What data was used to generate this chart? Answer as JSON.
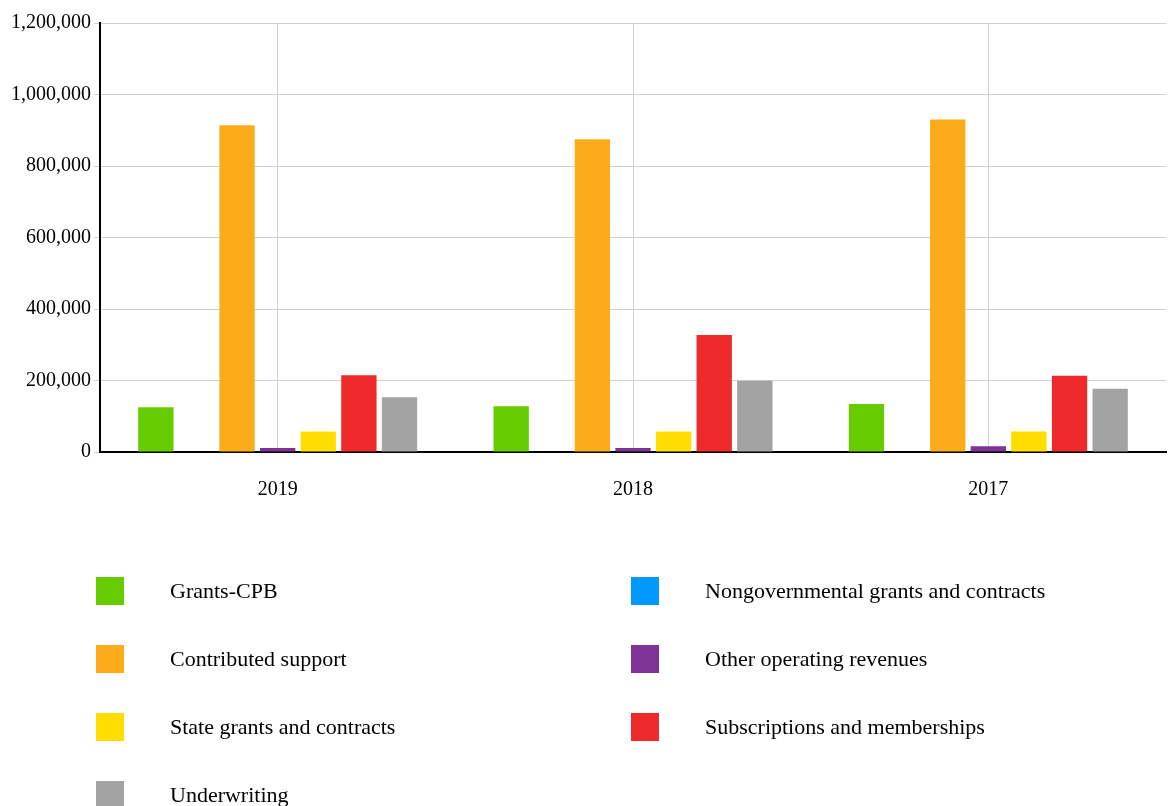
{
  "chart_data": {
    "type": "bar",
    "categories": [
      "2019",
      "2018",
      "2017"
    ],
    "series": [
      {
        "name": "Grants-CPB",
        "color": "#66cc00",
        "values": [
          125000,
          128000,
          134000
        ]
      },
      {
        "name": "Nongovernmental grants and contracts",
        "color": "#0099ff",
        "values": [
          0,
          0,
          0
        ]
      },
      {
        "name": "Contributed support",
        "color": "#fcab1a",
        "values": [
          914000,
          875000,
          930000
        ]
      },
      {
        "name": "Other operating revenues",
        "color": "#7f3399",
        "values": [
          11000,
          11000,
          16000
        ]
      },
      {
        "name": "State grants and contracts",
        "color": "#ffdd00",
        "values": [
          57000,
          57000,
          57000
        ]
      },
      {
        "name": "Subscriptions and memberships",
        "color": "#ee2a2a",
        "values": [
          215000,
          327000,
          213000
        ]
      },
      {
        "name": "Underwriting",
        "color": "#a3a3a3",
        "values": [
          153000,
          199000,
          177000
        ]
      }
    ],
    "ylim": [
      0,
      1200000
    ],
    "yticks": [
      0,
      {
        "value": 200000,
        "label": "200,000"
      },
      {
        "value": 400000,
        "label": "400,000"
      },
      {
        "value": 600000,
        "label": "600,000"
      },
      {
        "value": 800000,
        "label": "800,000"
      },
      {
        "value": 1000000,
        "label": "1,000,000"
      },
      {
        "value": 1200000,
        "label": "1,200,000"
      }
    ],
    "grid": true,
    "legend": "bottom"
  }
}
